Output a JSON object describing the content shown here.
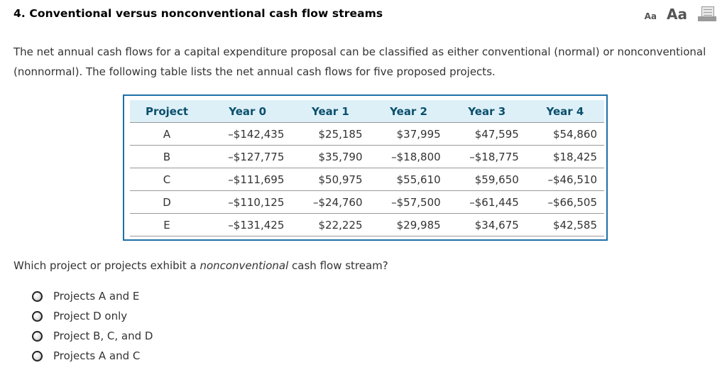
{
  "header": {
    "title": "4.  Conventional versus nonconventional cash flow streams",
    "tools": {
      "font_small_label": "Aa",
      "font_large_label": "Aa",
      "print_icon": "print-icon"
    }
  },
  "intro": "The net annual cash flows for a capital expenditure proposal can be classified as either conventional (normal) or nonconventional (nonnormal). The following table lists the net annual cash flows for five proposed projects.",
  "table": {
    "headers": [
      "Project",
      "Year 0",
      "Year 1",
      "Year 2",
      "Year 3",
      "Year 4"
    ],
    "rows": [
      [
        "A",
        "–$142,435",
        "$25,185",
        "$37,995",
        "$47,595",
        "$54,860"
      ],
      [
        "B",
        "–$127,775",
        "$35,790",
        "–$18,800",
        "–$18,775",
        "$18,425"
      ],
      [
        "C",
        "–$111,695",
        "$50,975",
        "$55,610",
        "$59,650",
        "–$46,510"
      ],
      [
        "D",
        "–$110,125",
        "–$24,760",
        "–$57,500",
        "–$61,445",
        "–$66,505"
      ],
      [
        "E",
        "–$131,425",
        "$22,225",
        "$29,985",
        "$34,675",
        "$42,585"
      ]
    ]
  },
  "question": {
    "before": "Which project or projects exhibit a ",
    "emphasis": "nonconventional",
    "after": " cash flow stream?"
  },
  "options": [
    {
      "label": "Projects A and E",
      "selected": false
    },
    {
      "label": "Project D only",
      "selected": false
    },
    {
      "label": "Project B, C, and D",
      "selected": false
    },
    {
      "label": "Projects A and C",
      "selected": false
    }
  ],
  "colors": {
    "table_border": "#1f6fa8",
    "header_bg": "#ddf0f8",
    "header_text": "#0b4f6c"
  }
}
